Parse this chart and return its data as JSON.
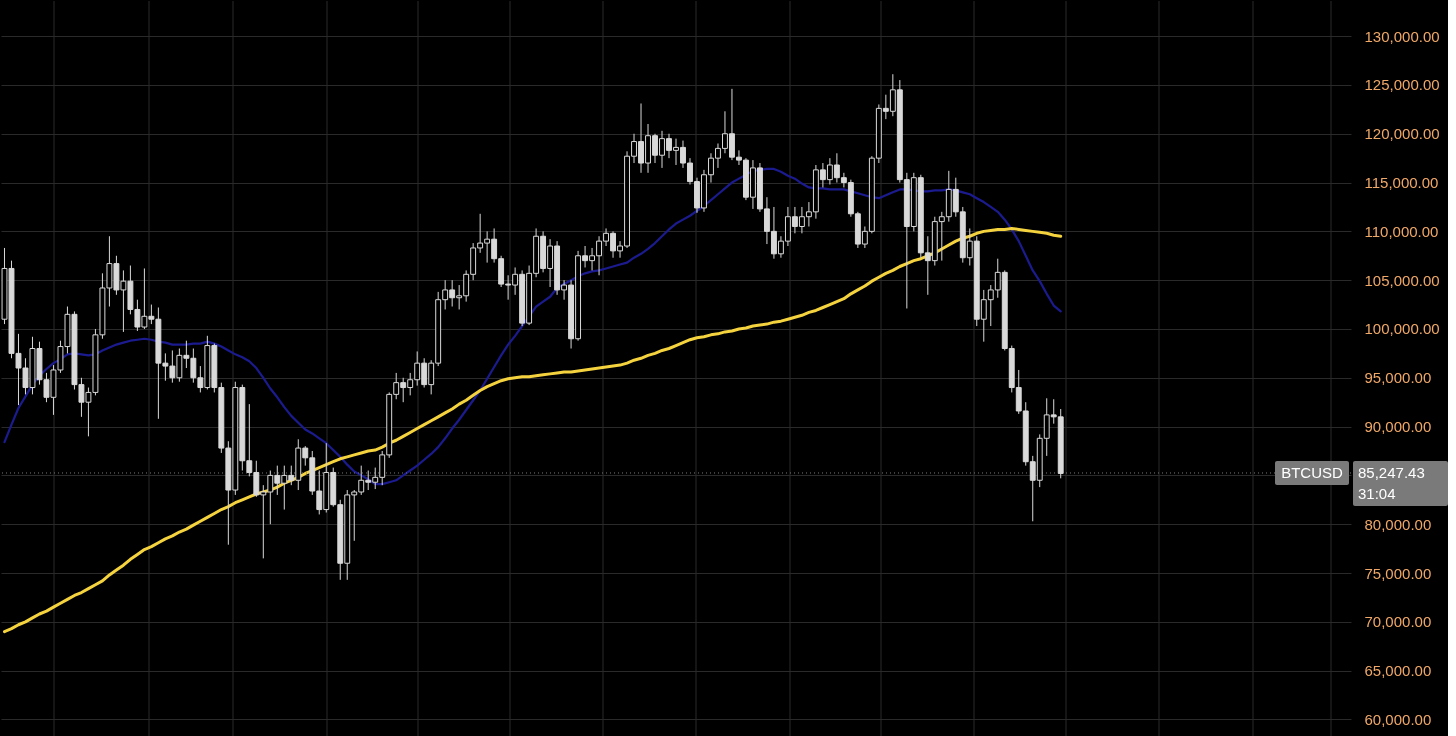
{
  "chart_data": {
    "type": "candlestick",
    "color": "#d9d9d9",
    "categories": [
      null,
      null,
      null,
      null,
      null,
      null,
      null,
      null,
      null,
      null,
      null,
      null,
      null,
      null,
      null,
      null,
      null,
      null,
      null,
      null,
      null,
      null,
      null,
      null,
      null,
      null,
      null,
      null,
      null,
      null,
      null,
      null,
      null,
      null,
      null,
      null,
      null,
      null,
      null,
      null,
      null,
      null,
      null,
      null,
      null,
      null,
      null,
      null,
      null,
      null,
      null,
      null,
      null,
      null,
      null,
      null,
      null,
      null,
      null,
      null,
      null,
      null,
      null,
      null,
      null,
      null,
      null,
      null,
      null,
      null,
      null,
      null,
      null,
      null,
      null,
      null,
      null,
      null,
      null,
      null,
      null,
      null,
      null,
      null,
      null,
      null,
      null,
      null,
      null,
      null,
      null,
      null,
      null,
      null,
      null,
      null,
      null,
      null,
      null,
      null,
      null,
      null,
      null,
      null,
      null,
      null,
      null,
      null,
      null,
      null,
      null,
      null,
      null,
      null,
      null,
      null,
      null,
      null,
      null,
      null,
      null,
      null,
      null,
      null,
      null,
      null,
      null,
      null,
      null,
      null,
      null,
      null,
      null,
      null,
      null,
      null,
      null,
      null,
      null,
      null,
      null,
      null,
      null,
      null,
      null,
      null,
      null,
      null,
      null,
      null,
      null,
      null,
      null,
      null,
      null,
      null,
      null,
      null,
      null,
      null,
      null,
      null,
      null,
      null,
      null,
      null,
      null,
      null,
      null,
      null,
      null,
      null,
      null,
      null,
      null,
      null,
      null,
      null,
      null,
      null,
      null,
      null,
      null,
      null,
      null,
      null,
      null,
      null,
      null,
      null,
      null,
      null,
      null
    ],
    "ohlc": [
      [
        101000,
        108300,
        100500,
        106200
      ],
      [
        106200,
        107000,
        97000,
        97500
      ],
      [
        97500,
        99500,
        92200,
        96000
      ],
      [
        96000,
        97000,
        93300,
        94000
      ],
      [
        94000,
        99200,
        93300,
        98000
      ],
      [
        98000,
        98700,
        94300,
        94800
      ],
      [
        94800,
        95500,
        92500,
        93000
      ],
      [
        93000,
        96300,
        91200,
        95800
      ],
      [
        95800,
        98800,
        95500,
        98200
      ],
      [
        98200,
        102300,
        97500,
        101500
      ],
      [
        101500,
        101800,
        93800,
        94300
      ],
      [
        94300,
        95000,
        91000,
        92500
      ],
      [
        92500,
        94000,
        89000,
        93500
      ],
      [
        93500,
        100000,
        93200,
        99400
      ],
      [
        99400,
        105700,
        99000,
        104200
      ],
      [
        104200,
        109500,
        102300,
        106700
      ],
      [
        106700,
        107500,
        103500,
        104000
      ],
      [
        104000,
        106000,
        99700,
        104900
      ],
      [
        104900,
        106500,
        101500,
        102000
      ],
      [
        102000,
        103000,
        99800,
        100200
      ],
      [
        100200,
        106200,
        100000,
        101300
      ],
      [
        101300,
        102500,
        100500,
        101000
      ],
      [
        101000,
        102200,
        90800,
        96500
      ],
      [
        96500,
        97500,
        94700,
        96200
      ],
      [
        96200,
        97800,
        94500,
        95000
      ],
      [
        95000,
        98000,
        94600,
        97300
      ],
      [
        97300,
        98800,
        96000,
        97000
      ],
      [
        97000,
        98000,
        94500,
        95000
      ],
      [
        95000,
        96200,
        93500,
        94000
      ],
      [
        94000,
        99300,
        93800,
        98300
      ],
      [
        98300,
        98500,
        93500,
        94000
      ],
      [
        94000,
        94500,
        87300,
        87800
      ],
      [
        87800,
        88500,
        77900,
        83500
      ],
      [
        83500,
        94600,
        83000,
        94000
      ],
      [
        94000,
        94300,
        85500,
        86500
      ],
      [
        86500,
        92300,
        84900,
        85300
      ],
      [
        85300,
        86500,
        82800,
        83000
      ],
      [
        83000,
        84000,
        76500,
        83300
      ],
      [
        83300,
        85500,
        80000,
        85000
      ],
      [
        85000,
        86000,
        83000,
        84200
      ],
      [
        84200,
        86000,
        81500,
        85000
      ],
      [
        85000,
        86000,
        84000,
        84500
      ],
      [
        84500,
        88700,
        83500,
        87800
      ],
      [
        87800,
        88000,
        86000,
        86800
      ],
      [
        86800,
        87500,
        83000,
        83400
      ],
      [
        83400,
        85500,
        81000,
        81500
      ],
      [
        81500,
        88300,
        81200,
        85300
      ],
      [
        85300,
        85800,
        81800,
        82000
      ],
      [
        82000,
        82500,
        74300,
        76000
      ],
      [
        76000,
        83500,
        74300,
        83000
      ],
      [
        83000,
        83500,
        78300,
        83300
      ],
      [
        83300,
        86000,
        83000,
        84500
      ],
      [
        84500,
        85500,
        83500,
        84300
      ],
      [
        84300,
        85800,
        83600,
        84800
      ],
      [
        84800,
        87500,
        84000,
        87100
      ],
      [
        87100,
        93500,
        86800,
        93300
      ],
      [
        93300,
        95500,
        92800,
        94500
      ],
      [
        94500,
        95000,
        92500,
        94000
      ],
      [
        94000,
        95500,
        93200,
        94800
      ],
      [
        94800,
        97700,
        94200,
        96500
      ],
      [
        96500,
        97000,
        94000,
        94300
      ],
      [
        94300,
        96800,
        93300,
        96500
      ],
      [
        96500,
        103800,
        96200,
        103000
      ],
      [
        103000,
        105000,
        102000,
        104000
      ],
      [
        104000,
        105000,
        102300,
        103200
      ],
      [
        103200,
        104500,
        102000,
        103400
      ],
      [
        103400,
        106000,
        102800,
        105600
      ],
      [
        105600,
        108800,
        105000,
        108300
      ],
      [
        108300,
        111800,
        107800,
        108800
      ],
      [
        108800,
        110000,
        106800,
        109200
      ],
      [
        109200,
        110300,
        106800,
        107200
      ],
      [
        107200,
        107500,
        104300,
        104600
      ],
      [
        104600,
        105500,
        103000,
        104500
      ],
      [
        104500,
        106300,
        103500,
        105600
      ],
      [
        105600,
        106000,
        100300,
        100600
      ],
      [
        100600,
        106500,
        100400,
        105700
      ],
      [
        105700,
        110300,
        105300,
        109500
      ],
      [
        109500,
        110000,
        105800,
        106200
      ],
      [
        106200,
        109200,
        104300,
        108500
      ],
      [
        108500,
        109000,
        103500,
        104000
      ],
      [
        104000,
        105000,
        103000,
        104500
      ],
      [
        104500,
        105000,
        98000,
        99000
      ],
      [
        99000,
        108000,
        98800,
        107500
      ],
      [
        107500,
        108500,
        106300,
        107000
      ],
      [
        107000,
        108300,
        106000,
        107500
      ],
      [
        107500,
        109500,
        105500,
        109000
      ],
      [
        109000,
        110300,
        108500,
        109800
      ],
      [
        109800,
        110000,
        107300,
        108000
      ],
      [
        108000,
        109000,
        107300,
        108500
      ],
      [
        108500,
        118200,
        108300,
        117700
      ],
      [
        117700,
        120000,
        117000,
        119200
      ],
      [
        119200,
        123100,
        116000,
        117000
      ],
      [
        117000,
        121000,
        116000,
        119800
      ],
      [
        119800,
        120000,
        117000,
        117800
      ],
      [
        117800,
        120300,
        116500,
        119500
      ],
      [
        119500,
        120000,
        117500,
        118300
      ],
      [
        118300,
        119500,
        116800,
        118600
      ],
      [
        118600,
        119300,
        116500,
        117000
      ],
      [
        117000,
        117500,
        114800,
        115100
      ],
      [
        115100,
        115500,
        111900,
        112400
      ],
      [
        112400,
        116300,
        112000,
        115800
      ],
      [
        115800,
        118000,
        115000,
        117500
      ],
      [
        117500,
        119000,
        116500,
        118500
      ],
      [
        118500,
        122300,
        118000,
        120000
      ],
      [
        120000,
        124600,
        117300,
        117600
      ],
      [
        117600,
        118300,
        116800,
        117300
      ],
      [
        117300,
        117500,
        113200,
        113500
      ],
      [
        113500,
        117300,
        112300,
        116500
      ],
      [
        116500,
        117000,
        112000,
        112300
      ],
      [
        112300,
        113500,
        108700,
        110000
      ],
      [
        110000,
        112500,
        107200,
        107700
      ],
      [
        107700,
        109500,
        107300,
        109000
      ],
      [
        109000,
        112500,
        108500,
        111500
      ],
      [
        111500,
        112500,
        109800,
        110500
      ],
      [
        110500,
        112500,
        109800,
        111500
      ],
      [
        111500,
        113000,
        110500,
        112000
      ],
      [
        112000,
        116800,
        111300,
        116300
      ],
      [
        116300,
        117000,
        114500,
        115300
      ],
      [
        115300,
        117500,
        114800,
        116800
      ],
      [
        116800,
        118000,
        115000,
        115500
      ],
      [
        115500,
        116000,
        114500,
        115000
      ],
      [
        115000,
        115300,
        111500,
        111800
      ],
      [
        111800,
        112000,
        108300,
        108700
      ],
      [
        108700,
        110500,
        108300,
        110000
      ],
      [
        110000,
        117700,
        109800,
        117500
      ],
      [
        117500,
        123000,
        117000,
        122600
      ],
      [
        122600,
        124000,
        121500,
        122300
      ],
      [
        122300,
        126100,
        121800,
        124500
      ],
      [
        124500,
        125500,
        115000,
        115300
      ],
      [
        115300,
        116000,
        102100,
        110500
      ],
      [
        110500,
        116000,
        110000,
        115500
      ],
      [
        115500,
        115800,
        107300,
        107800
      ],
      [
        107800,
        109500,
        103500,
        107000
      ],
      [
        107000,
        111500,
        106500,
        111000
      ],
      [
        111000,
        112000,
        107000,
        111500
      ],
      [
        111500,
        116200,
        111000,
        114300
      ],
      [
        114300,
        115500,
        111500,
        112000
      ],
      [
        112000,
        112500,
        106800,
        107300
      ],
      [
        107300,
        110300,
        106500,
        109000
      ],
      [
        109000,
        109500,
        100300,
        101000
      ],
      [
        101000,
        104000,
        98700,
        103000
      ],
      [
        103000,
        104500,
        100300,
        104000
      ],
      [
        104000,
        107200,
        103200,
        105800
      ],
      [
        105800,
        106000,
        97800,
        98000
      ],
      [
        98000,
        98300,
        93500,
        94000
      ],
      [
        94000,
        95800,
        91300,
        91600
      ],
      [
        91600,
        92500,
        86000,
        86400
      ],
      [
        86400,
        87000,
        80300,
        84500
      ],
      [
        84500,
        89200,
        83800,
        88800
      ],
      [
        88800,
        92900,
        87000,
        91200
      ],
      [
        91200,
        92800,
        90300,
        91000
      ],
      [
        91000,
        91800,
        84700,
        85200
      ],
      null,
      null,
      null,
      null,
      null,
      null,
      null,
      null,
      null,
      null,
      null,
      null,
      null,
      null,
      null,
      null,
      null,
      null,
      null,
      null,
      null,
      null,
      null,
      null,
      null,
      null,
      null,
      null,
      null,
      null,
      null,
      null,
      null,
      null,
      null,
      null,
      null,
      null,
      null,
      null,
      null
    ],
    "series": [
      {
        "type": "line",
        "color": "#1b1b8f",
        "values": [
          88400,
          90200,
          91900,
          93100,
          94300,
          95200,
          95900,
          96500,
          96900,
          97400,
          97500,
          97400,
          97300,
          97400,
          97800,
          98100,
          98400,
          98600,
          98800,
          98900,
          99000,
          98900,
          98700,
          98600,
          98400,
          98400,
          98400,
          98500,
          98500,
          98700,
          98500,
          98200,
          97800,
          97400,
          97100,
          96700,
          96000,
          95000,
          93900,
          93000,
          92000,
          91100,
          90400,
          89700,
          89300,
          88800,
          88300,
          87600,
          86900,
          86100,
          85400,
          85000,
          84600,
          84100,
          84100,
          84300,
          84500,
          85000,
          85500,
          86000,
          86600,
          87200,
          87900,
          88800,
          89800,
          90700,
          91700,
          92700,
          93700,
          94900,
          96100,
          97300,
          98400,
          99300,
          100300,
          101300,
          102300,
          102800,
          103300,
          104200,
          104600,
          105000,
          105400,
          105700,
          105900,
          106000,
          106200,
          106400,
          106600,
          106800,
          107300,
          107700,
          108200,
          108800,
          109500,
          110200,
          110800,
          111200,
          111600,
          112100,
          112600,
          113200,
          113800,
          114400,
          115000,
          115400,
          115800,
          116200,
          116300,
          116400,
          116400,
          116100,
          115700,
          115400,
          114900,
          114500,
          114400,
          114400,
          114300,
          114300,
          114300,
          114100,
          113900,
          113700,
          113500,
          113400,
          113700,
          114000,
          114300,
          114300,
          114200,
          114100,
          114100,
          114200,
          114200,
          114300,
          114200,
          114000,
          113800,
          113400,
          113000,
          112500,
          112000,
          111200,
          110200,
          109000,
          107500,
          106000,
          104900,
          103600,
          102400,
          101800,
          null,
          null,
          null,
          null,
          null,
          null,
          null,
          null,
          null,
          null,
          null,
          null,
          null,
          null,
          null,
          null,
          null,
          null,
          null,
          null,
          null,
          null,
          null,
          null,
          null,
          null,
          null,
          null,
          null,
          null,
          null,
          null,
          null,
          null,
          null,
          null,
          null,
          null,
          null,
          null,
          null
        ]
      },
      {
        "type": "line",
        "color": "#f5d33f",
        "values": [
          69000,
          69300,
          69700,
          70000,
          70400,
          70800,
          71100,
          71500,
          71900,
          72300,
          72700,
          73000,
          73400,
          73800,
          74200,
          74800,
          75300,
          75800,
          76400,
          76900,
          77400,
          77700,
          78100,
          78500,
          78800,
          79200,
          79500,
          79900,
          80300,
          80700,
          81100,
          81500,
          81800,
          82200,
          82500,
          82800,
          83100,
          83300,
          83500,
          83800,
          84200,
          84500,
          84800,
          85200,
          85500,
          85800,
          86100,
          86400,
          86700,
          86900,
          87100,
          87300,
          87500,
          87600,
          87900,
          88300,
          88600,
          89000,
          89400,
          89800,
          90200,
          90600,
          91000,
          91400,
          91800,
          92300,
          92700,
          93200,
          93700,
          94100,
          94400,
          94700,
          94900,
          95000,
          95100,
          95100,
          95200,
          95300,
          95400,
          95500,
          95600,
          95600,
          95700,
          95800,
          95900,
          96000,
          96100,
          96200,
          96300,
          96500,
          96800,
          97000,
          97300,
          97500,
          97800,
          98000,
          98300,
          98600,
          98900,
          99100,
          99200,
          99400,
          99500,
          99700,
          99800,
          100000,
          100100,
          100300,
          100400,
          100500,
          100700,
          100800,
          101000,
          101200,
          101400,
          101700,
          101900,
          102200,
          102500,
          102800,
          103100,
          103600,
          104000,
          104400,
          104900,
          105300,
          105700,
          106000,
          106400,
          106700,
          107000,
          107200,
          107500,
          107800,
          108200,
          108600,
          109000,
          109300,
          109500,
          109800,
          110000,
          110100,
          110200,
          110200,
          110300,
          110200,
          110100,
          110000,
          109900,
          109800,
          109600,
          109500,
          null,
          null,
          null,
          null,
          null,
          null,
          null,
          null,
          null,
          null,
          null,
          null,
          null,
          null,
          null,
          null,
          null,
          null,
          null,
          null,
          null,
          null,
          null,
          null,
          null,
          null,
          null,
          null,
          null,
          null,
          null,
          null,
          null,
          null,
          null,
          null,
          null,
          null,
          null,
          null,
          null
        ]
      }
    ],
    "ylim": [
      58200,
      133600
    ],
    "yticks": [
      {
        "value": 60000,
        "label": "60,000.00"
      },
      {
        "value": 65000,
        "label": "65,000.00"
      },
      {
        "value": 70000,
        "label": "70,000.00"
      },
      {
        "value": 75000,
        "label": "75,000.00"
      },
      {
        "value": 80000,
        "label": "80,000.00"
      },
      {
        "value": 85000,
        "label": null
      },
      {
        "value": 90000,
        "label": "90,000.00"
      },
      {
        "value": 95000,
        "label": "95,000.00"
      },
      {
        "value": 100000,
        "label": "100,000.00"
      },
      {
        "value": 105000,
        "label": "105,000.00"
      },
      {
        "value": 110000,
        "label": "110,000.00"
      },
      {
        "value": 115000,
        "label": "115,000.00"
      },
      {
        "value": 120000,
        "label": "120,000.00"
      },
      {
        "value": 125000,
        "label": "125,000.00"
      },
      {
        "value": 130000,
        "label": "130,000.00"
      }
    ],
    "grid": true,
    "tick_labels": "y",
    "ref_lines": [
      {
        "axis": "y",
        "value": 85247.43,
        "label": "85,247.43",
        "line_style": "dotted",
        "color": "#7a7a7a"
      }
    ],
    "annotations": [
      "BTCUSD",
      "31:04"
    ]
  }
}
